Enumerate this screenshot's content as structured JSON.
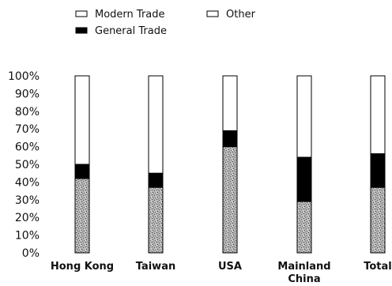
{
  "chart_data": {
    "type": "bar",
    "stacked": true,
    "categories": [
      [
        "Hong Kong"
      ],
      [
        "Taiwan"
      ],
      [
        "USA"
      ],
      [
        "Mainland",
        "China"
      ],
      [
        "Total"
      ]
    ],
    "series": [
      {
        "name": "Modern Trade",
        "values": [
          42,
          37,
          60,
          29,
          37
        ],
        "color": "#9a9a9a",
        "pattern": "speckle"
      },
      {
        "name": "General Trade",
        "values": [
          8,
          8,
          9,
          25,
          19
        ],
        "color": "#000000"
      },
      {
        "name": "Other",
        "values": [
          50,
          55,
          31,
          46,
          44
        ],
        "color": "#ffffff"
      }
    ],
    "legend_order": [
      "Modern Trade",
      "Other",
      "General Trade"
    ],
    "legend_position": "top-left",
    "ylim": [
      0,
      100
    ],
    "yticks": [
      "0%",
      "10%",
      "20%",
      "30%",
      "40%",
      "50%",
      "60%",
      "70%",
      "80%",
      "90%",
      "100%"
    ],
    "xlabel": "",
    "ylabel": "",
    "title": "",
    "grid": false
  }
}
